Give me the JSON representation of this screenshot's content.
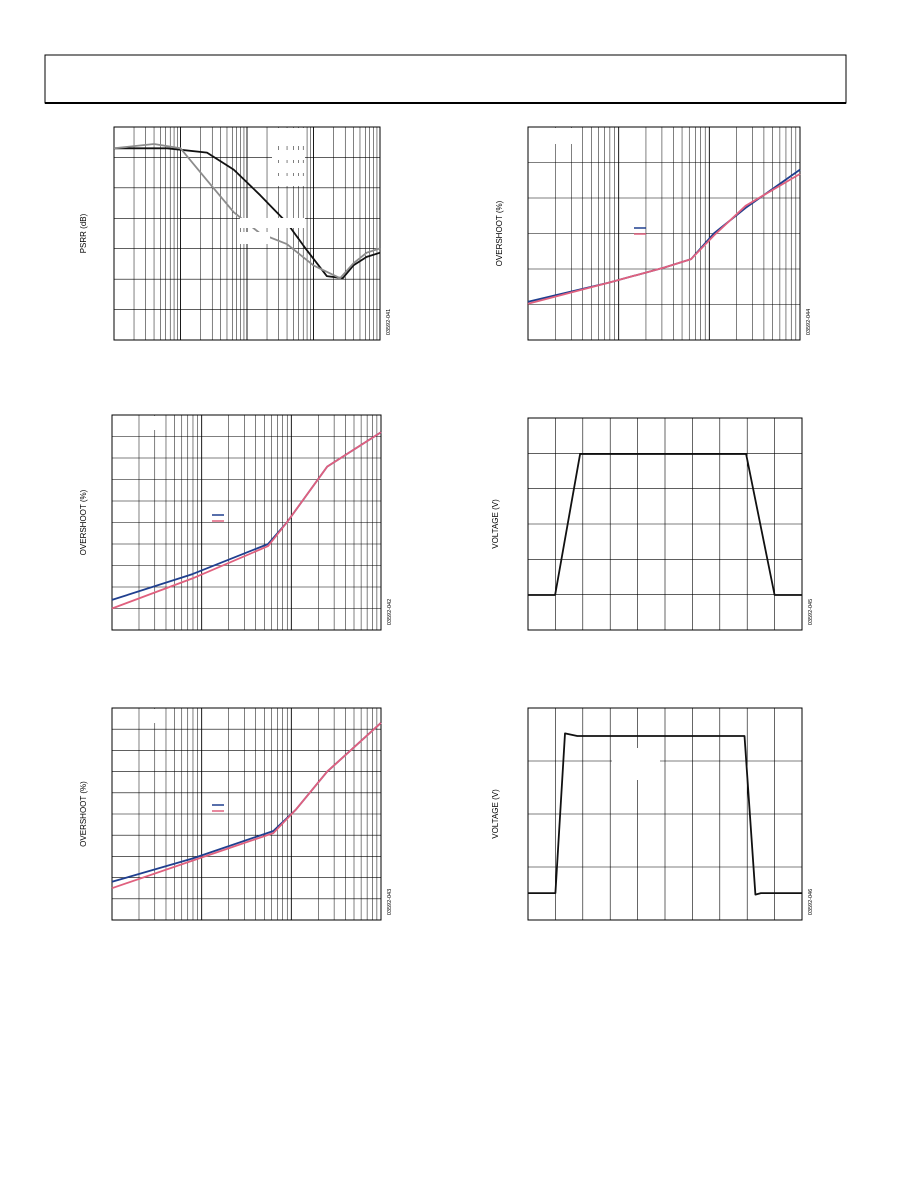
{
  "chart_data": [
    {
      "type": "line",
      "y_label": "PSRR (dB)",
      "figure_id": "03592-041",
      "log_x": true,
      "xlim": [
        1,
        10000
      ],
      "ylim": [
        0,
        100
      ],
      "grid": {
        "x_decades": 4,
        "y_divisions": 7
      },
      "series": [
        {
          "color": "#111111",
          "x": [
            1,
            6.3,
            25,
            63,
            158,
            398,
            759,
            1585,
            2754,
            3981,
            6310,
            10000
          ],
          "values": [
            90,
            90,
            88,
            80,
            68,
            55,
            43,
            30,
            29,
            35,
            39,
            41
          ]
        },
        {
          "color": "#8c8c8c",
          "x": [
            1,
            4,
            10,
            25,
            63,
            158,
            398,
            1000,
            2512,
            3981,
            6310,
            10000
          ],
          "values": [
            90,
            92,
            90,
            75,
            60,
            50,
            45,
            35,
            29,
            36,
            41,
            43
          ]
        }
      ]
    },
    {
      "type": "line",
      "y_label": "OVERSHOOT (%)",
      "figure_id": "03592-044",
      "log_x": true,
      "xlim": [
        1,
        1000
      ],
      "ylim": [
        0,
        100
      ],
      "grid": {
        "x_decades": 3,
        "y_divisions": 6
      },
      "series": [
        {
          "color": "#1f3f8f",
          "x": [
            1,
            7.9,
            31.6,
            63,
            112,
            251,
            1000
          ],
          "values": [
            18,
            27,
            34,
            38,
            50,
            62,
            80
          ]
        },
        {
          "color": "#e0607e",
          "x": [
            1,
            7.9,
            31.6,
            63,
            112,
            251,
            1000
          ],
          "values": [
            17,
            27,
            34,
            38,
            49,
            63,
            78
          ]
        }
      ]
    },
    {
      "type": "line",
      "y_label": "OVERSHOOT (%)",
      "figure_id": "03592-042",
      "log_x": true,
      "xlim": [
        1,
        1000
      ],
      "ylim": [
        0,
        100
      ],
      "grid": {
        "x_decades": 3,
        "y_divisions": 10
      },
      "series": [
        {
          "color": "#1f3f8f",
          "x": [
            1,
            7.9,
            55,
            89,
            251,
            1000
          ],
          "values": [
            14,
            26,
            40,
            50,
            76,
            92
          ]
        },
        {
          "color": "#e0607e",
          "x": [
            1,
            7.9,
            55,
            89,
            251,
            1000
          ],
          "values": [
            10,
            24,
            39,
            50,
            76,
            92
          ]
        }
      ]
    },
    {
      "type": "line",
      "y_label": "VOLTAGE (V)",
      "figure_id": "03592-045",
      "log_x": false,
      "xlim": [
        0,
        10
      ],
      "ylim": [
        0,
        100
      ],
      "grid": {
        "x_divisions": 10,
        "y_divisions": 6
      },
      "series": [
        {
          "color": "#111111",
          "x": [
            0,
            0.99,
            1.9,
            7.96,
            9.0,
            10
          ],
          "values": [
            16.5,
            16.5,
            83,
            83,
            16.5,
            16.5
          ]
        }
      ]
    },
    {
      "type": "line",
      "y_label": "OVERSHOOT (%)",
      "figure_id": "03592-043",
      "log_x": true,
      "xlim": [
        1,
        1000
      ],
      "ylim": [
        0,
        100
      ],
      "grid": {
        "x_decades": 3,
        "y_divisions": 10
      },
      "series": [
        {
          "color": "#1f3f8f",
          "x": [
            1,
            7.9,
            63,
            112,
            251,
            1000
          ],
          "values": [
            18,
            29,
            42,
            52,
            70,
            93
          ]
        },
        {
          "color": "#e0607e",
          "x": [
            1,
            7.9,
            63,
            112,
            251,
            1000
          ],
          "values": [
            15,
            28,
            41,
            52,
            70,
            93
          ]
        }
      ]
    },
    {
      "type": "line",
      "y_label": "VOLTAGE (V)",
      "figure_id": "03592-046",
      "log_x": false,
      "xlim": [
        0,
        10
      ],
      "ylim": [
        0,
        100
      ],
      "grid": {
        "x_divisions": 10,
        "y_divisions": 4
      },
      "series": [
        {
          "color": "#111111",
          "x": [
            0,
            1.0,
            1.35,
            1.8,
            7.9,
            8.3,
            8.5,
            10
          ],
          "values": [
            12.7,
            12.7,
            88,
            86.8,
            86.8,
            12,
            12.7,
            12.7
          ]
        }
      ]
    }
  ]
}
